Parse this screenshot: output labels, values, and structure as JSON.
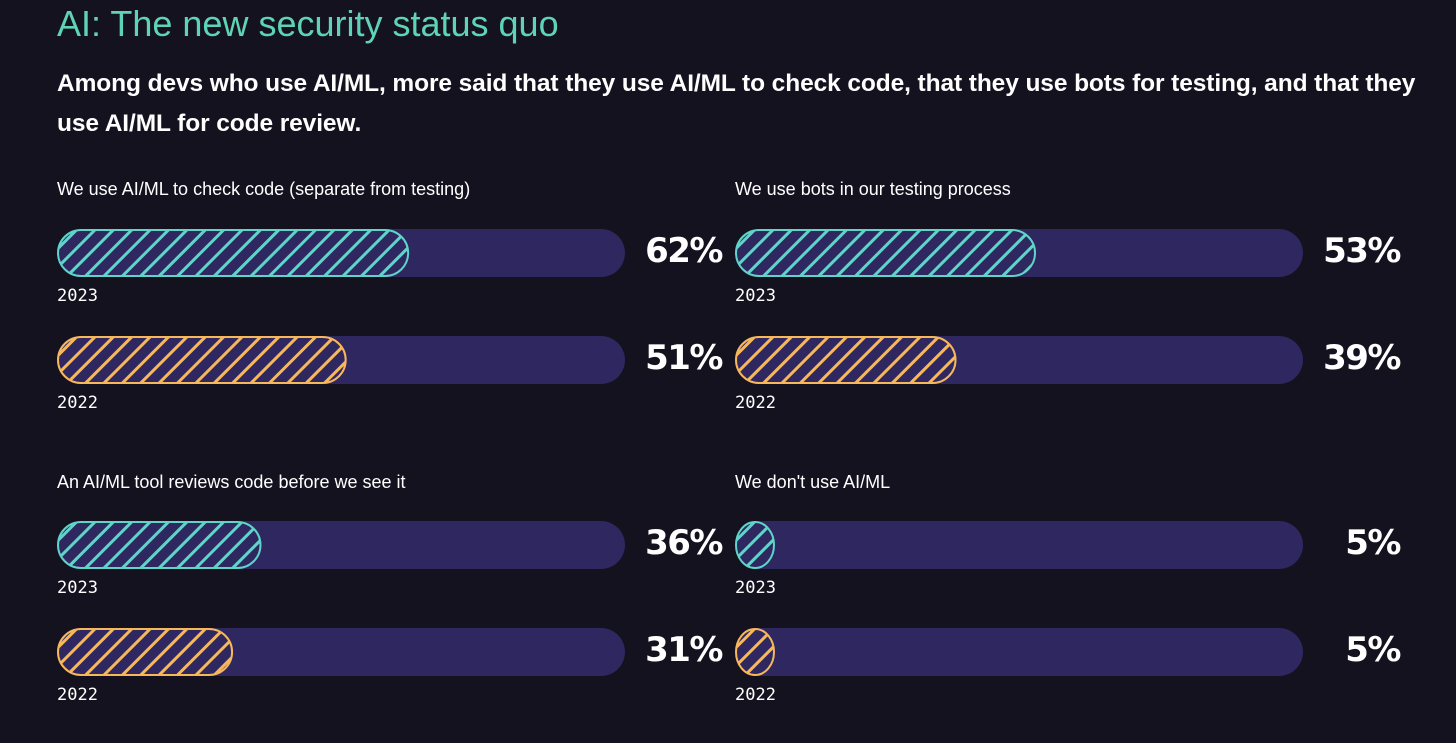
{
  "title": "AI: The new security status quo",
  "subtitle": "Among devs who use AI/ML, more said that they use AI/ML to check code, that they use bots for testing, and that they use AI/ML for code review.",
  "colors": {
    "background": "#15121f",
    "title": "#5fd4b4",
    "track": "#2f2760",
    "series_2023": "#5fd4c8",
    "series_2022": "#f7b75b",
    "text": "#ffffff"
  },
  "chart_data": [
    {
      "type": "bar",
      "title": "We use AI/ML to check code (separate from testing)",
      "unit": "%",
      "xlim": [
        0,
        100
      ],
      "series": [
        {
          "name": "2023",
          "value": 62,
          "label": "62%"
        },
        {
          "name": "2022",
          "value": 51,
          "label": "51%"
        }
      ]
    },
    {
      "type": "bar",
      "title": "We use bots in our testing process",
      "unit": "%",
      "xlim": [
        0,
        100
      ],
      "series": [
        {
          "name": "2023",
          "value": 53,
          "label": "53%"
        },
        {
          "name": "2022",
          "value": 39,
          "label": "39%"
        }
      ]
    },
    {
      "type": "bar",
      "title": "An AI/ML tool reviews code before we see it",
      "unit": "%",
      "xlim": [
        0,
        100
      ],
      "series": [
        {
          "name": "2023",
          "value": 36,
          "label": "36%"
        },
        {
          "name": "2022",
          "value": 31,
          "label": "31%"
        }
      ]
    },
    {
      "type": "bar",
      "title": "We don't use AI/ML",
      "unit": "%",
      "xlim": [
        0,
        100
      ],
      "series": [
        {
          "name": "2023",
          "value": 5,
          "label": "5%"
        },
        {
          "name": "2022",
          "value": 5,
          "label": "5%"
        }
      ]
    }
  ]
}
